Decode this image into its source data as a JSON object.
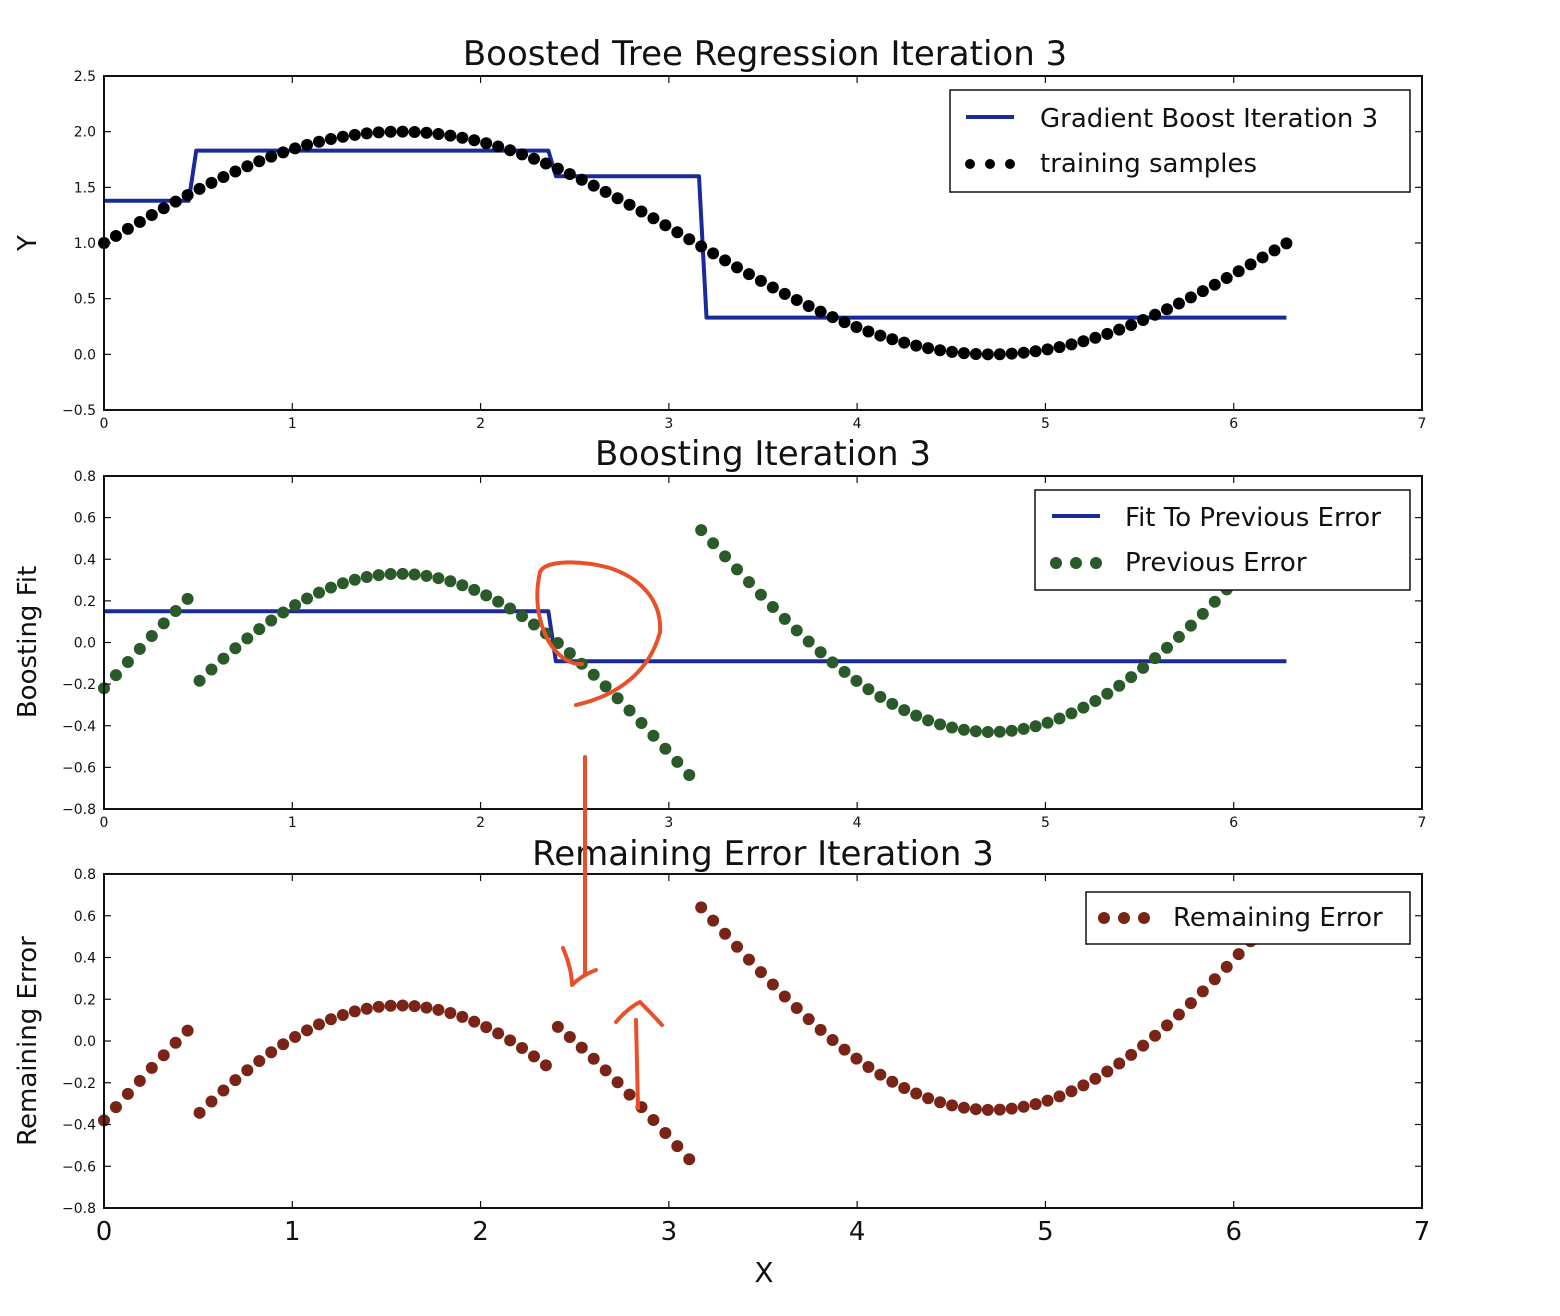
{
  "chart_data": [
    {
      "type": "scatter",
      "title": "Boosted Tree Regression Iteration 3",
      "xlabel": "",
      "ylabel": "Y",
      "xlim": [
        0,
        7
      ],
      "ylim": [
        -0.5,
        2.5
      ],
      "x_ticks": [
        "0",
        "1",
        "2",
        "3",
        "4",
        "5",
        "6",
        "7"
      ],
      "y_ticks": [
        "−0.5",
        "0.0",
        "0.5",
        "1.0",
        "1.5",
        "2.0",
        "2.5"
      ],
      "legend_position": "top-right",
      "series": [
        {
          "name": "Gradient Boost Iteration 3",
          "kind": "step-line",
          "color": "#1a2a9a",
          "breaks": [
            0.45,
            2.36,
            3.16
          ],
          "levels": [
            1.38,
            1.83,
            1.6,
            0.33
          ],
          "x_range": [
            0,
            6.28
          ]
        },
        {
          "name": "training samples",
          "kind": "points",
          "color": "#000000",
          "formula": "1 + sin(x)",
          "count": 100,
          "x_range": [
            0,
            6.28
          ]
        }
      ]
    },
    {
      "type": "scatter",
      "title": "Boosting Iteration 3",
      "xlabel": "",
      "ylabel": "Boosting Fit",
      "xlim": [
        0,
        7
      ],
      "ylim": [
        -0.8,
        0.8
      ],
      "x_ticks": [
        "0",
        "1",
        "2",
        "3",
        "4",
        "5",
        "6",
        "7"
      ],
      "y_ticks": [
        "−0.8",
        "−0.6",
        "−0.4",
        "−0.2",
        "0.0",
        "0.2",
        "0.4",
        "0.6",
        "0.8"
      ],
      "legend_position": "top-right",
      "series": [
        {
          "name": "Fit To Previous Error",
          "kind": "step-line",
          "color": "#1a2a9a",
          "breaks": [
            2.36
          ],
          "levels": [
            0.15,
            -0.09
          ],
          "x_range": [
            0,
            6.28
          ]
        },
        {
          "name": "Previous Error",
          "kind": "points",
          "color": "#2a5a2a",
          "formula": "1 + sin(x) - piecewise([0.45, 3.16], [1.22, 1.67, 0.43])",
          "breaks": [
            0.45,
            3.16
          ],
          "levels": [
            1.22,
            1.67,
            0.43
          ],
          "count": 100,
          "x_range": [
            0,
            6.28
          ]
        }
      ]
    },
    {
      "type": "scatter",
      "title": "Remaining Error Iteration 3",
      "xlabel": "X",
      "ylabel": "Remaining Error",
      "xlim": [
        0,
        7
      ],
      "ylim": [
        -0.8,
        0.8
      ],
      "x_ticks": [
        "0",
        "1",
        "2",
        "3",
        "4",
        "5",
        "6",
        "7"
      ],
      "y_ticks": [
        "−0.8",
        "−0.6",
        "−0.4",
        "−0.2",
        "0.0",
        "0.2",
        "0.4",
        "0.6",
        "0.8"
      ],
      "legend_position": "top-right",
      "series": [
        {
          "name": "Remaining Error",
          "kind": "points",
          "color": "#7a2418",
          "formula": "1 + sin(x) - piecewise([0.45, 2.36, 3.16], [1.38, 1.83, 1.6, 0.33])",
          "breaks": [
            0.45,
            2.36,
            3.16
          ],
          "levels": [
            1.38,
            1.83,
            1.6,
            0.33
          ],
          "count": 100,
          "x_range": [
            0,
            6.28
          ]
        }
      ]
    }
  ],
  "annotation_color": "#e8502a"
}
